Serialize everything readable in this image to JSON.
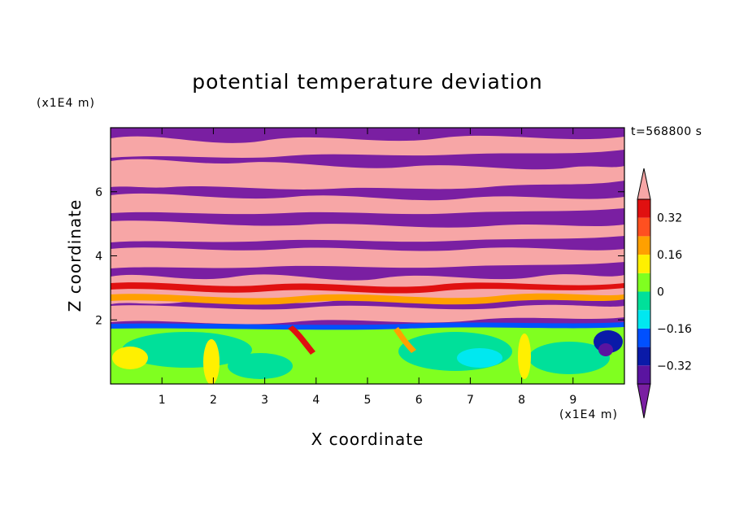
{
  "chart_data": {
    "type": "heatmap",
    "title": "potential temperature deviation",
    "xlabel": "X coordinate",
    "ylabel": "Z coordinate",
    "x_unit": "(x1E4 m)",
    "z_unit": "(x1E4 m)",
    "time_label": "t=568800 s",
    "xlim": [
      0,
      10
    ],
    "ylim": [
      0,
      8
    ],
    "x_ticks": [
      1,
      2,
      3,
      4,
      5,
      6,
      7,
      8,
      9
    ],
    "y_ticks": [
      2,
      4,
      6
    ],
    "colorbar": {
      "levels": [
        -0.4,
        -0.32,
        -0.24,
        -0.16,
        -0.08,
        0,
        0.08,
        0.16,
        0.24,
        0.32,
        0.4
      ],
      "tick_labels": [
        "0.32",
        "0.16",
        "0",
        "−0.16",
        "−0.32"
      ],
      "tick_values": [
        0.32,
        0.16,
        0,
        -0.16,
        -0.32
      ],
      "colors": [
        "#7a1fa2",
        "#5a14a0",
        "#0a1aa8",
        "#0050ff",
        "#00e8f0",
        "#00e09a",
        "#80ff20",
        "#fff000",
        "#ffa000",
        "#ff5020",
        "#e01010",
        "#f7a6a6"
      ]
    }
  }
}
